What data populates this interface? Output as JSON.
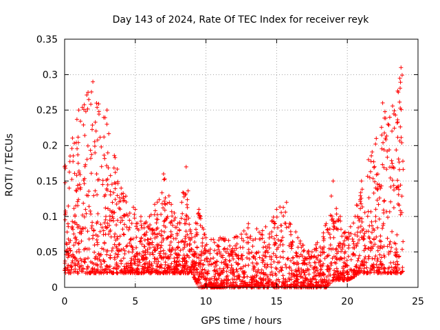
{
  "chart_data": {
    "type": "scatter",
    "title": "Day 143 of 2024, Rate Of TEC Index for receiver reyk",
    "xlabel": "GPS time / hours",
    "ylabel": "ROTI / TECUs",
    "xlim": [
      0,
      25
    ],
    "ylim": [
      0,
      0.35
    ],
    "x_ticks": [
      "0",
      "5",
      "10",
      "15",
      "20",
      "25"
    ],
    "y_ticks": [
      "0",
      "0.05",
      "0.1",
      "0.15",
      "0.2",
      "0.25",
      "0.3",
      "0.35"
    ],
    "grid": true,
    "marker": "+",
    "marker_color": "#ff0000",
    "series": [
      {
        "name": "ROTI",
        "description_by_hour": [
          {
            "x": 0.0,
            "low": 0.02,
            "high": 0.17
          },
          {
            "x": 1.0,
            "low": 0.02,
            "high": 0.25
          },
          {
            "x": 2.0,
            "low": 0.02,
            "high": 0.29
          },
          {
            "x": 3.0,
            "low": 0.02,
            "high": 0.25
          },
          {
            "x": 4.0,
            "low": 0.02,
            "high": 0.14
          },
          {
            "x": 5.0,
            "low": 0.02,
            "high": 0.11
          },
          {
            "x": 6.0,
            "low": 0.02,
            "high": 0.1
          },
          {
            "x": 7.0,
            "low": 0.02,
            "high": 0.16
          },
          {
            "x": 8.0,
            "low": 0.02,
            "high": 0.09
          },
          {
            "x": 8.6,
            "low": 0.02,
            "high": 0.17
          },
          {
            "x": 9.0,
            "low": 0.02,
            "high": 0.07
          },
          {
            "x": 9.5,
            "low": 0.0,
            "high": 0.11
          },
          {
            "x": 10.0,
            "low": 0.0,
            "high": 0.07
          },
          {
            "x": 11.0,
            "low": 0.0,
            "high": 0.07
          },
          {
            "x": 12.0,
            "low": 0.0,
            "high": 0.07
          },
          {
            "x": 13.0,
            "low": 0.0,
            "high": 0.09
          },
          {
            "x": 14.0,
            "low": 0.0,
            "high": 0.08
          },
          {
            "x": 15.0,
            "low": 0.0,
            "high": 0.11
          },
          {
            "x": 15.7,
            "low": 0.0,
            "high": 0.12
          },
          {
            "x": 16.5,
            "low": 0.0,
            "high": 0.07
          },
          {
            "x": 17.5,
            "low": 0.0,
            "high": 0.05
          },
          {
            "x": 18.5,
            "low": 0.0,
            "high": 0.09
          },
          {
            "x": 19.0,
            "low": 0.01,
            "high": 0.15
          },
          {
            "x": 19.5,
            "low": 0.01,
            "high": 0.1
          },
          {
            "x": 20.0,
            "low": 0.01,
            "high": 0.07
          },
          {
            "x": 21.0,
            "low": 0.02,
            "high": 0.15
          },
          {
            "x": 21.5,
            "low": 0.02,
            "high": 0.18
          },
          {
            "x": 22.5,
            "low": 0.02,
            "high": 0.26
          },
          {
            "x": 23.0,
            "low": 0.02,
            "high": 0.24
          },
          {
            "x": 23.8,
            "low": 0.02,
            "high": 0.31
          }
        ]
      }
    ]
  }
}
